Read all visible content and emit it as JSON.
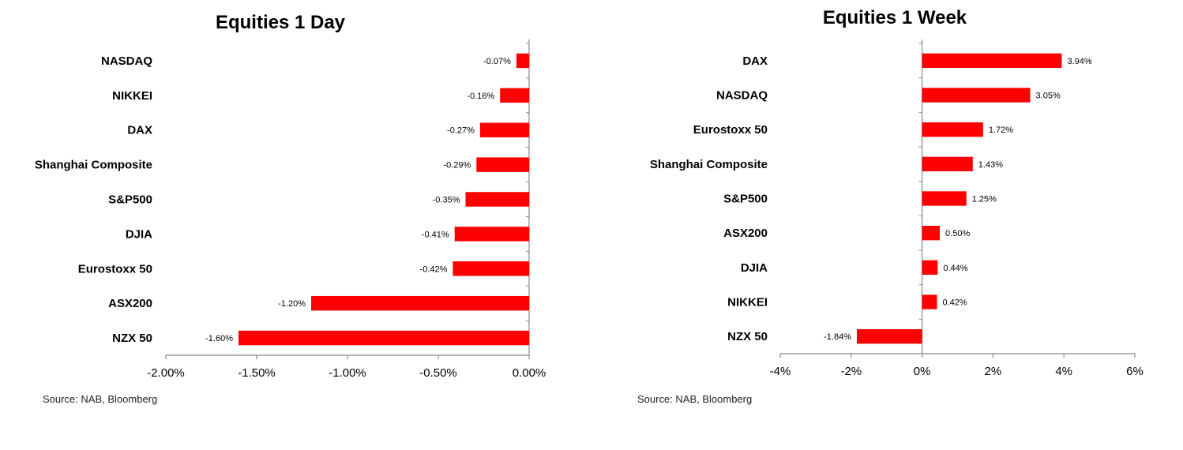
{
  "chart_data": [
    {
      "type": "bar",
      "orientation": "horizontal",
      "title": "Equities 1 Day",
      "source": "Source: NAB, Bloomberg",
      "categories": [
        "NASDAQ",
        "NIKKEI",
        "DAX",
        "Shanghai Composite",
        "S&P500",
        "DJIA",
        "Eurostoxx 50",
        "ASX200",
        "NZX 50"
      ],
      "values": [
        -0.07,
        -0.16,
        -0.27,
        -0.29,
        -0.35,
        -0.41,
        -0.42,
        -1.2,
        -1.6
      ],
      "data_labels": [
        "-0.07%",
        "-0.16%",
        "-0.27%",
        "-0.29%",
        "-0.35%",
        "-0.41%",
        "-0.42%",
        "-1.20%",
        "-1.60%"
      ],
      "xlim": [
        -2.0,
        0.0
      ],
      "ticks": [
        -2.0,
        -1.5,
        -1.0,
        -0.5,
        0.0
      ],
      "tick_labels": [
        "-2.00%",
        "-1.50%",
        "-1.00%",
        "-0.50%",
        "0.00%"
      ],
      "xlabel": "",
      "ylabel": "",
      "bar_color": "#ff0000",
      "grid": false,
      "legend": false
    },
    {
      "type": "bar",
      "orientation": "horizontal",
      "title": "Equities 1 Week",
      "source": "Source: NAB, Bloomberg",
      "categories": [
        "DAX",
        "NASDAQ",
        "Eurostoxx 50",
        "Shanghai Composite",
        "S&P500",
        "ASX200",
        "DJIA",
        "NIKKEI",
        "NZX 50"
      ],
      "values": [
        3.94,
        3.05,
        1.72,
        1.43,
        1.25,
        0.5,
        0.44,
        0.42,
        -1.84
      ],
      "data_labels": [
        "3.94%",
        "3.05%",
        "1.72%",
        "1.43%",
        "1.25%",
        "0.50%",
        "0.44%",
        "0.42%",
        "-1.84%"
      ],
      "xlim": [
        -4,
        6
      ],
      "ticks": [
        -4,
        -2,
        0,
        2,
        4,
        6
      ],
      "tick_labels": [
        "-4%",
        "-2%",
        "0%",
        "2%",
        "4%",
        "6%"
      ],
      "xlabel": "",
      "ylabel": "",
      "bar_color": "#ff0000",
      "grid": false,
      "legend": false
    }
  ]
}
